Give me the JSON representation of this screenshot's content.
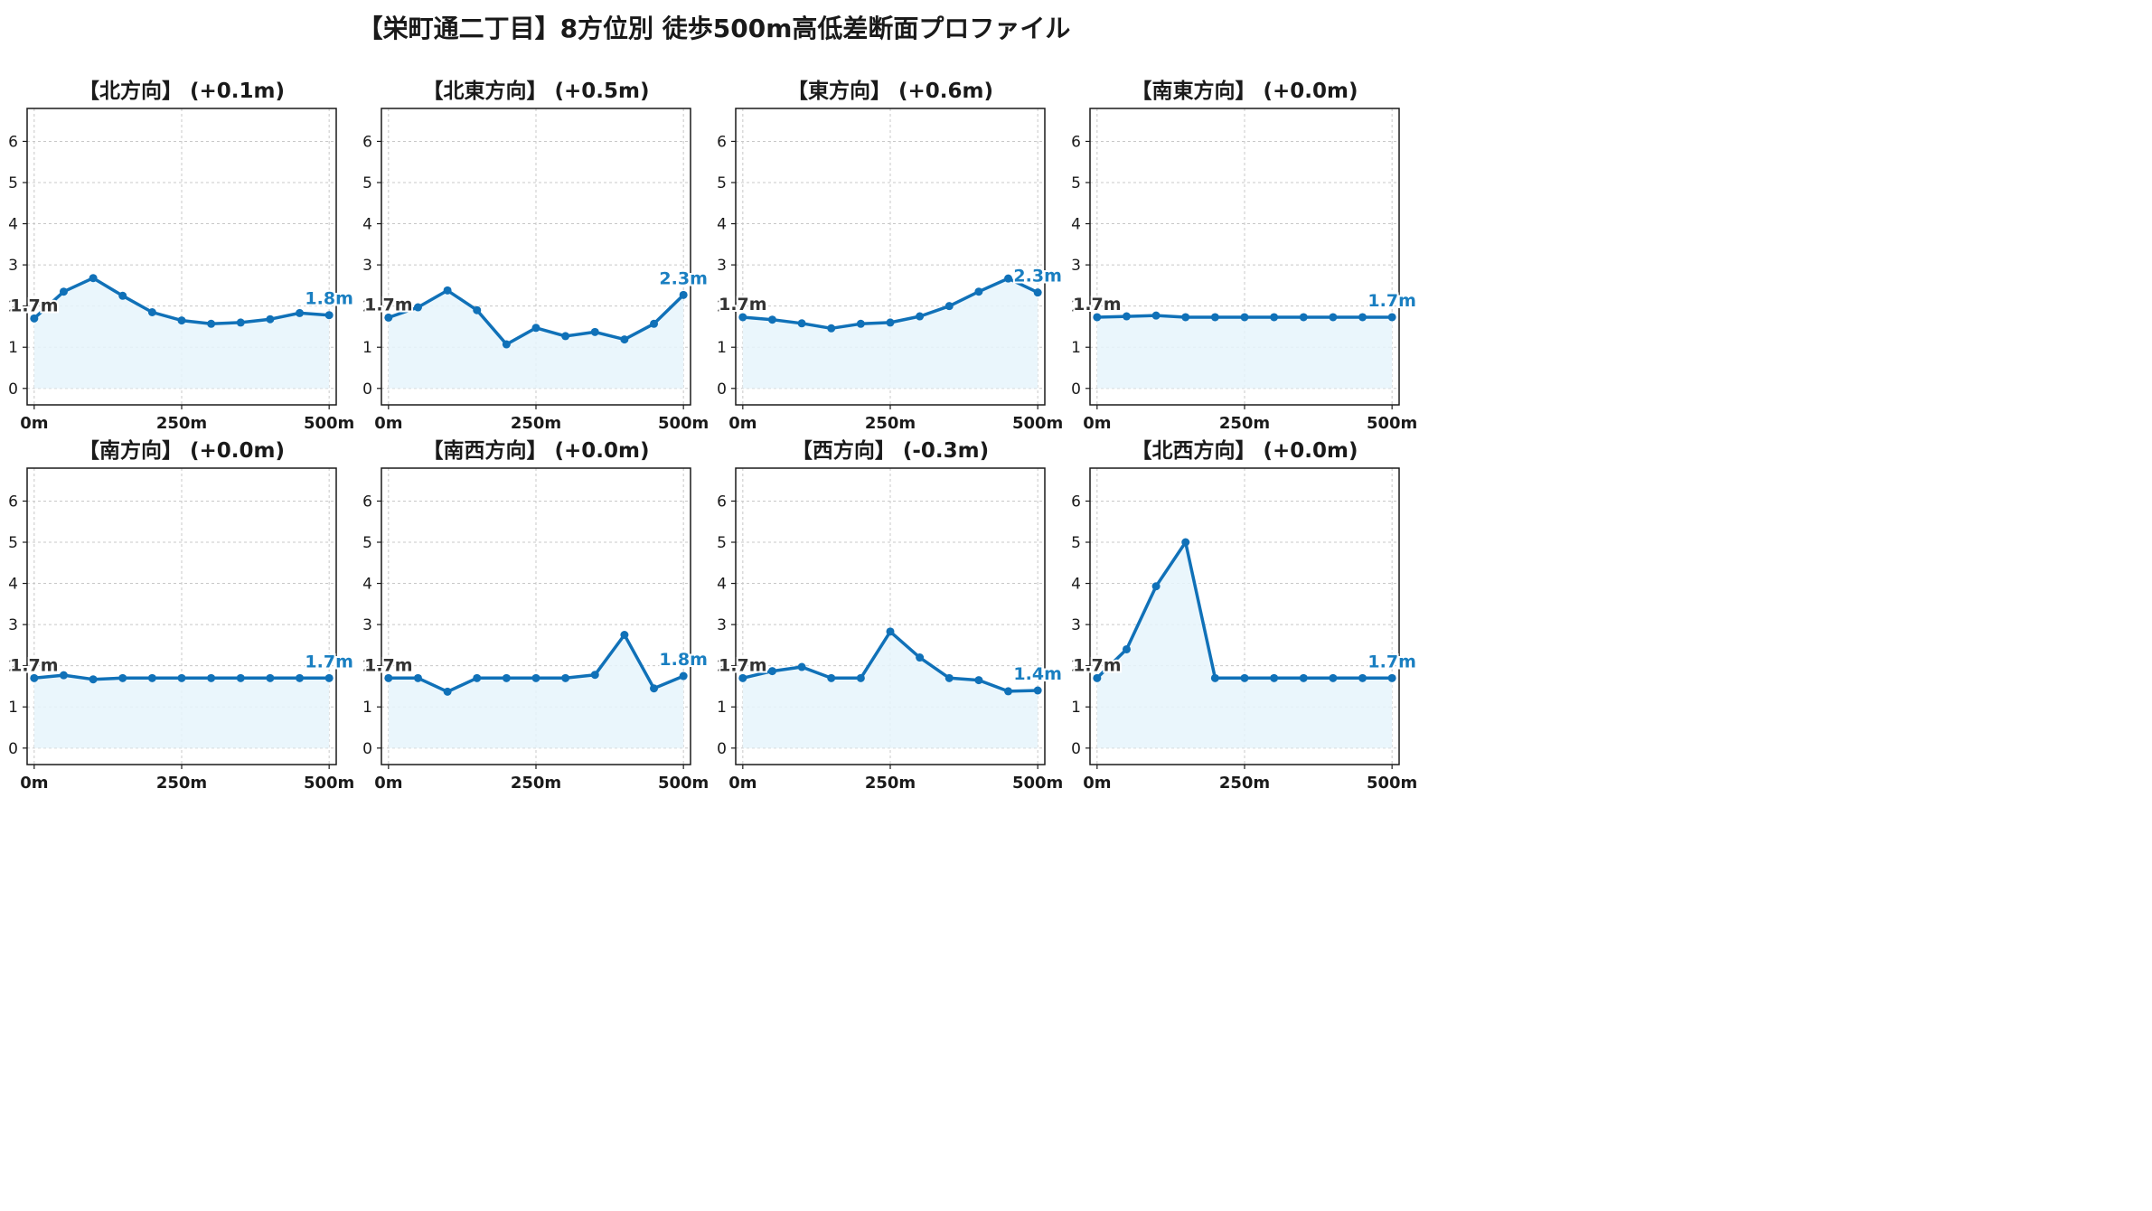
{
  "suptitle": "【栄町通二丁目】8方位別 徒歩500m高低差断面プロファイル",
  "colors": {
    "line": "#1071b8",
    "fill": "#e6f4fb",
    "start_label": "#333333",
    "end_label": "#1a7fc1"
  },
  "chart_data": [
    {
      "type": "area",
      "title": "【北方向】 (+0.1m)",
      "x": [
        0,
        50,
        100,
        150,
        200,
        250,
        300,
        350,
        400,
        450,
        500
      ],
      "values": [
        1.7,
        2.35,
        2.68,
        2.25,
        1.85,
        1.65,
        1.57,
        1.6,
        1.68,
        1.83,
        1.78
      ],
      "start_label": "1.7m",
      "end_label": "1.8m",
      "xticks": [
        "0m",
        "250m",
        "500m"
      ],
      "yticks": [
        0,
        1,
        2,
        3,
        4,
        5,
        6
      ],
      "ylim": [
        -0.4,
        6.8
      ],
      "xlim": [
        -12,
        512
      ],
      "grid": true
    },
    {
      "type": "area",
      "title": "【北東方向】 (+0.5m)",
      "x": [
        0,
        50,
        100,
        150,
        200,
        250,
        300,
        350,
        400,
        450,
        500
      ],
      "values": [
        1.72,
        1.97,
        2.38,
        1.9,
        1.07,
        1.47,
        1.27,
        1.37,
        1.19,
        1.57,
        2.27
      ],
      "start_label": "1.7m",
      "end_label": "2.3m",
      "xticks": [
        "0m",
        "250m",
        "500m"
      ],
      "yticks": [
        0,
        1,
        2,
        3,
        4,
        5,
        6
      ],
      "ylim": [
        -0.4,
        6.8
      ],
      "xlim": [
        -12,
        512
      ],
      "grid": true
    },
    {
      "type": "area",
      "title": "【東方向】 (+0.6m)",
      "x": [
        0,
        50,
        100,
        150,
        200,
        250,
        300,
        350,
        400,
        450,
        500
      ],
      "values": [
        1.73,
        1.67,
        1.58,
        1.46,
        1.57,
        1.6,
        1.75,
        2.0,
        2.35,
        2.67,
        2.33
      ],
      "start_label": "1.7m",
      "end_label": "2.3m",
      "xticks": [
        "0m",
        "250m",
        "500m"
      ],
      "yticks": [
        0,
        1,
        2,
        3,
        4,
        5,
        6
      ],
      "ylim": [
        -0.4,
        6.8
      ],
      "xlim": [
        -12,
        512
      ],
      "grid": true
    },
    {
      "type": "area",
      "title": "【南東方向】 (+0.0m)",
      "x": [
        0,
        50,
        100,
        150,
        200,
        250,
        300,
        350,
        400,
        450,
        500
      ],
      "values": [
        1.73,
        1.75,
        1.77,
        1.73,
        1.73,
        1.73,
        1.73,
        1.73,
        1.73,
        1.73,
        1.73
      ],
      "start_label": "1.7m",
      "end_label": "1.7m",
      "xticks": [
        "0m",
        "250m",
        "500m"
      ],
      "yticks": [
        0,
        1,
        2,
        3,
        4,
        5,
        6
      ],
      "ylim": [
        -0.4,
        6.8
      ],
      "xlim": [
        -12,
        512
      ],
      "grid": true
    },
    {
      "type": "area",
      "title": "【南方向】 (+0.0m)",
      "x": [
        0,
        50,
        100,
        150,
        200,
        250,
        300,
        350,
        400,
        450,
        500
      ],
      "values": [
        1.7,
        1.77,
        1.67,
        1.7,
        1.7,
        1.7,
        1.7,
        1.7,
        1.7,
        1.7,
        1.7
      ],
      "start_label": "1.7m",
      "end_label": "1.7m",
      "xticks": [
        "0m",
        "250m",
        "500m"
      ],
      "yticks": [
        0,
        1,
        2,
        3,
        4,
        5,
        6
      ],
      "ylim": [
        -0.4,
        6.8
      ],
      "xlim": [
        -12,
        512
      ],
      "grid": true
    },
    {
      "type": "area",
      "title": "【南西方向】 (+0.0m)",
      "x": [
        0,
        50,
        100,
        150,
        200,
        250,
        300,
        350,
        400,
        450,
        500
      ],
      "values": [
        1.7,
        1.7,
        1.37,
        1.7,
        1.7,
        1.7,
        1.7,
        1.78,
        2.75,
        1.45,
        1.75
      ],
      "start_label": "1.7m",
      "end_label": "1.8m",
      "xticks": [
        "0m",
        "250m",
        "500m"
      ],
      "yticks": [
        0,
        1,
        2,
        3,
        4,
        5,
        6
      ],
      "ylim": [
        -0.4,
        6.8
      ],
      "xlim": [
        -12,
        512
      ],
      "grid": true
    },
    {
      "type": "area",
      "title": "【西方向】 (-0.3m)",
      "x": [
        0,
        50,
        100,
        150,
        200,
        250,
        300,
        350,
        400,
        450,
        500
      ],
      "values": [
        1.7,
        1.87,
        1.97,
        1.7,
        1.7,
        2.83,
        2.2,
        1.7,
        1.65,
        1.38,
        1.4
      ],
      "start_label": "1.7m",
      "end_label": "1.4m",
      "xticks": [
        "0m",
        "250m",
        "500m"
      ],
      "yticks": [
        0,
        1,
        2,
        3,
        4,
        5,
        6
      ],
      "ylim": [
        -0.4,
        6.8
      ],
      "xlim": [
        -12,
        512
      ],
      "grid": true
    },
    {
      "type": "area",
      "title": "【北西方向】 (+0.0m)",
      "x": [
        0,
        50,
        100,
        150,
        200,
        250,
        300,
        350,
        400,
        450,
        500
      ],
      "values": [
        1.7,
        2.4,
        3.93,
        5.0,
        1.7,
        1.7,
        1.7,
        1.7,
        1.7,
        1.7,
        1.7
      ],
      "start_label": "1.7m",
      "end_label": "1.7m",
      "xticks": [
        "0m",
        "250m",
        "500m"
      ],
      "yticks": [
        0,
        1,
        2,
        3,
        4,
        5,
        6
      ],
      "ylim": [
        -0.4,
        6.8
      ],
      "xlim": [
        -12,
        512
      ],
      "grid": true
    }
  ]
}
